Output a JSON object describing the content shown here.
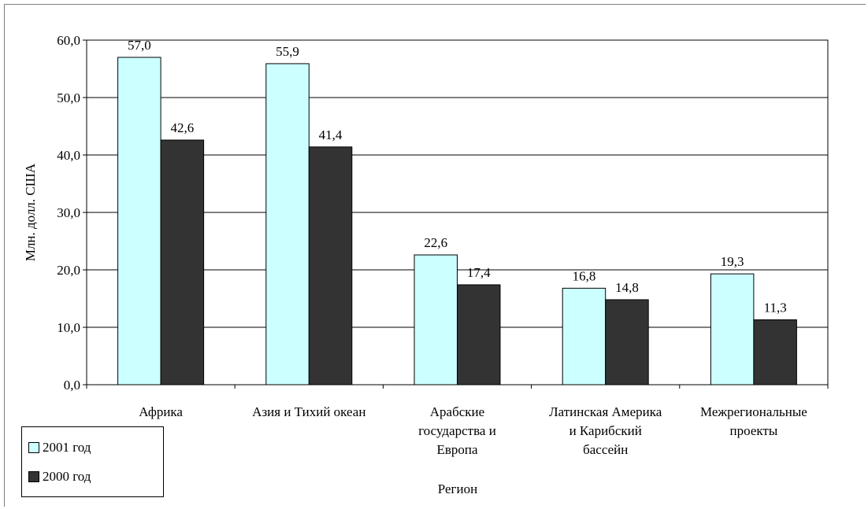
{
  "chart_data": {
    "type": "bar",
    "categories": [
      [
        "Африка"
      ],
      [
        "Азия и Тихий океан"
      ],
      [
        "Арабские",
        "государства и",
        "Европа"
      ],
      [
        "Латинская Америка",
        "и Карибский",
        "бассейн"
      ],
      [
        "Межрегиональные",
        "проекты"
      ]
    ],
    "series": [
      {
        "name": "2001 год",
        "values": [
          57.0,
          55.9,
          22.6,
          16.8,
          19.3
        ],
        "labels": [
          "57,0",
          "55,9",
          "22,6",
          "16,8",
          "19,3"
        ],
        "color": "#ccffff"
      },
      {
        "name": "2000 год",
        "values": [
          42.6,
          41.4,
          17.4,
          14.8,
          11.3
        ],
        "labels": [
          "42,6",
          "41,4",
          "17,4",
          "14,8",
          "11,3"
        ],
        "color": "#333333"
      }
    ],
    "yticks": [
      "0,0",
      "10,0",
      "20,0",
      "30,0",
      "40,0",
      "50,0",
      "60,0"
    ],
    "ylim": [
      0,
      60
    ],
    "ylabel": "Млн. долл. США",
    "xlabel": "Регион",
    "grid": true,
    "legend_position": "bottom-left"
  }
}
